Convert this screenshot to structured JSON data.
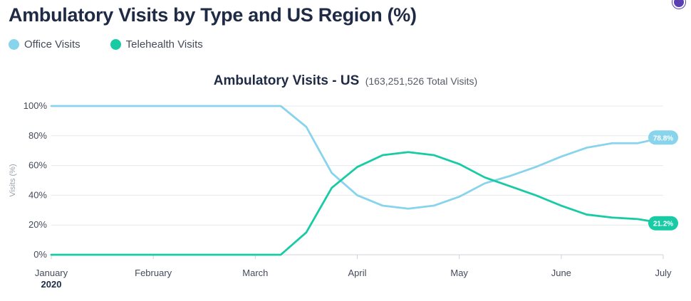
{
  "title": "Ambulatory Visits by Type and US Region (%)",
  "legend": [
    {
      "label": "Office Visits",
      "color": "#88d4ec"
    },
    {
      "label": "Telehealth Visits",
      "color": "#18cba5"
    }
  ],
  "chart_data": {
    "type": "line",
    "title": "Ambulatory Visits - US",
    "subtitle": "(163,251,526 Total Visits)",
    "xlabel": "",
    "ylabel": "Visits (%)",
    "x": [
      1,
      2,
      3,
      3.25,
      3.5,
      3.75,
      4,
      4.25,
      4.5,
      4.75,
      5,
      5.25,
      5.5,
      5.75,
      6,
      6.25,
      6.5,
      6.75,
      7
    ],
    "x_ticks": [
      {
        "value": 1,
        "label": "January"
      },
      {
        "value": 2,
        "label": "February"
      },
      {
        "value": 3,
        "label": "March"
      },
      {
        "value": 4,
        "label": "April"
      },
      {
        "value": 5,
        "label": "May"
      },
      {
        "value": 6,
        "label": "June"
      },
      {
        "value": 7,
        "label": "July"
      }
    ],
    "year_label": "2020",
    "ylim": [
      0,
      100
    ],
    "y_ticks": [
      {
        "value": 0,
        "label": "0%"
      },
      {
        "value": 20,
        "label": "20%"
      },
      {
        "value": 40,
        "label": "40%"
      },
      {
        "value": 60,
        "label": "60%"
      },
      {
        "value": 80,
        "label": "80%"
      },
      {
        "value": 100,
        "label": "100%"
      }
    ],
    "grid": true,
    "legend_position": "top-left",
    "series": [
      {
        "name": "Office Visits",
        "color": "#88d4ec",
        "values": [
          100,
          100,
          100,
          100,
          86,
          55,
          40,
          33,
          31,
          33,
          39,
          48,
          53,
          59,
          66,
          72,
          75,
          75,
          78.8
        ],
        "end_label": "78.8%"
      },
      {
        "name": "Telehealth Visits",
        "color": "#18cba5",
        "values": [
          0,
          0,
          0,
          0,
          15,
          45,
          59,
          67,
          69,
          67,
          61,
          52,
          46,
          40,
          33,
          27,
          25,
          24,
          21.2
        ],
        "end_label": "21.2%"
      }
    ]
  }
}
